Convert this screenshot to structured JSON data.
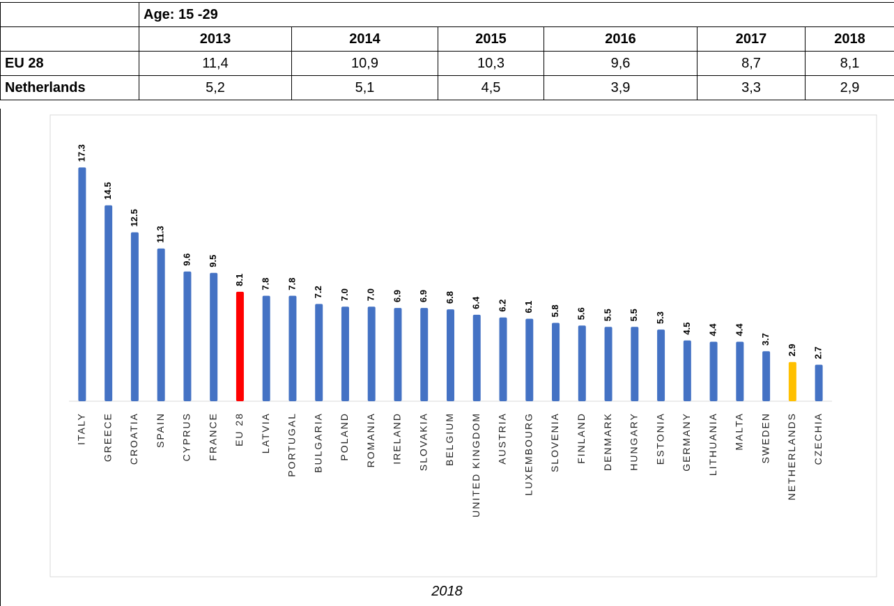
{
  "table": {
    "group_header": "Age: 15 -29",
    "years": [
      "2013",
      "2014",
      "2015",
      "2016",
      "2017",
      "2018"
    ],
    "rows": [
      [
        "EU 28",
        "11,4",
        "10,9",
        "10,3",
        "9,6",
        "8,7",
        "8,1"
      ],
      [
        "Netherlands",
        "5,2",
        "5,1",
        "4,5",
        "3,9",
        "3,3",
        "2,9"
      ]
    ]
  },
  "chart_data": {
    "type": "bar",
    "categories": [
      "ITALY",
      "GREECE",
      "CROATIA",
      "SPAIN",
      "CYPRUS",
      "FRANCE",
      "EU 28",
      "LATVIA",
      "PORTUGAL",
      "BULGARIA",
      "POLAND",
      "ROMANIA",
      "IRELAND",
      "SLOVAKIA",
      "BELGIUM",
      "UNITED KINGDOM",
      "AUSTRIA",
      "LUXEMBOURG",
      "SLOVENIA",
      "FINLAND",
      "DENMARK",
      "HUNGARY",
      "ESTONIA",
      "GERMANY",
      "LITHUANIA",
      "MALTA",
      "SWEDEN",
      "NETHERLANDS",
      "CZECHIA"
    ],
    "values": [
      17.3,
      14.5,
      12.5,
      11.3,
      9.6,
      9.5,
      8.1,
      7.8,
      7.8,
      7.2,
      7.0,
      7.0,
      6.9,
      6.9,
      6.8,
      6.4,
      6.2,
      6.1,
      5.8,
      5.6,
      5.5,
      5.5,
      5.3,
      4.5,
      4.4,
      4.4,
      3.7,
      2.9,
      2.7
    ],
    "value_labels": [
      "17.3",
      "14.5",
      "12.5",
      "11.3",
      "9.6",
      "9.5",
      "8.1",
      "7.8",
      "7.8",
      "7.2",
      "7.0",
      "7.0",
      "6.9",
      "6.9",
      "6.8",
      "6.4",
      "6.2",
      "6.1",
      "5.8",
      "5.6",
      "5.5",
      "5.5",
      "5.3",
      "4.5",
      "4.4",
      "4.4",
      "3.7",
      "2.9",
      "2.7"
    ],
    "colors": [
      "#4472c4",
      "#4472c4",
      "#4472c4",
      "#4472c4",
      "#4472c4",
      "#4472c4",
      "#ff0000",
      "#4472c4",
      "#4472c4",
      "#4472c4",
      "#4472c4",
      "#4472c4",
      "#4472c4",
      "#4472c4",
      "#4472c4",
      "#4472c4",
      "#4472c4",
      "#4472c4",
      "#4472c4",
      "#4472c4",
      "#4472c4",
      "#4472c4",
      "#4472c4",
      "#4472c4",
      "#4472c4",
      "#4472c4",
      "#4472c4",
      "#ffc000",
      "#4472c4"
    ],
    "ylim": [
      0,
      20
    ]
  },
  "caption": "2018"
}
